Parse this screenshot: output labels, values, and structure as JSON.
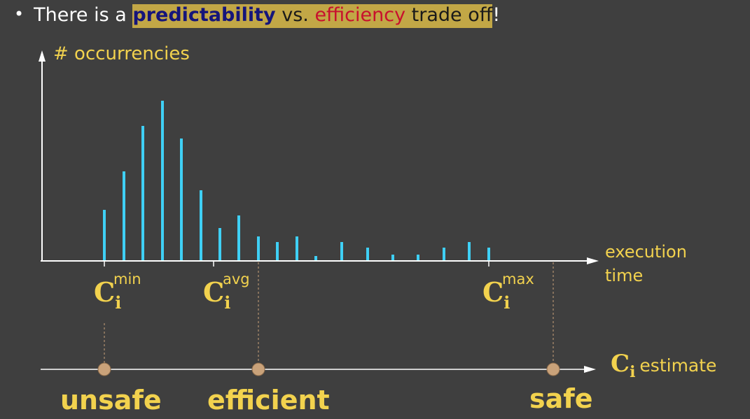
{
  "bullet": {
    "prefix": "There is a ",
    "keyword_predictability": "predictability",
    "vs": " vs. ",
    "keyword_efficiency": "efficiency",
    "trade": " trade off",
    "exclaim": "!"
  },
  "axes": {
    "ylabel": "# occurrencies",
    "xlabel_line1": "execution",
    "xlabel_line2": "time"
  },
  "markers": {
    "min": {
      "base": "C",
      "sub": "i",
      "sup": "min"
    },
    "avg": {
      "base": "C",
      "sub": "i",
      "sup": "avg"
    },
    "max": {
      "base": "C",
      "sub": "i",
      "sup": "max"
    }
  },
  "estimate_axis": {
    "base": "C",
    "sub": "i",
    "text": "estimate"
  },
  "points": {
    "unsafe": "unsafe",
    "efficient": "efficient",
    "safe": "safe"
  },
  "colors": {
    "background": "#3f3f3f",
    "bar": "#3fd0f5",
    "accent": "#f2d24e",
    "axis": "#ffffff",
    "highlight": "#c2a746",
    "dot": "#c9a27a"
  },
  "chart_data": {
    "type": "bar",
    "title": "",
    "xlabel": "execution time",
    "ylabel": "# occurrencies",
    "values": [
      72,
      127,
      192,
      228,
      174,
      100,
      46,
      64,
      34,
      26,
      34,
      6,
      26,
      18,
      8,
      8,
      18,
      26,
      18
    ]
  }
}
